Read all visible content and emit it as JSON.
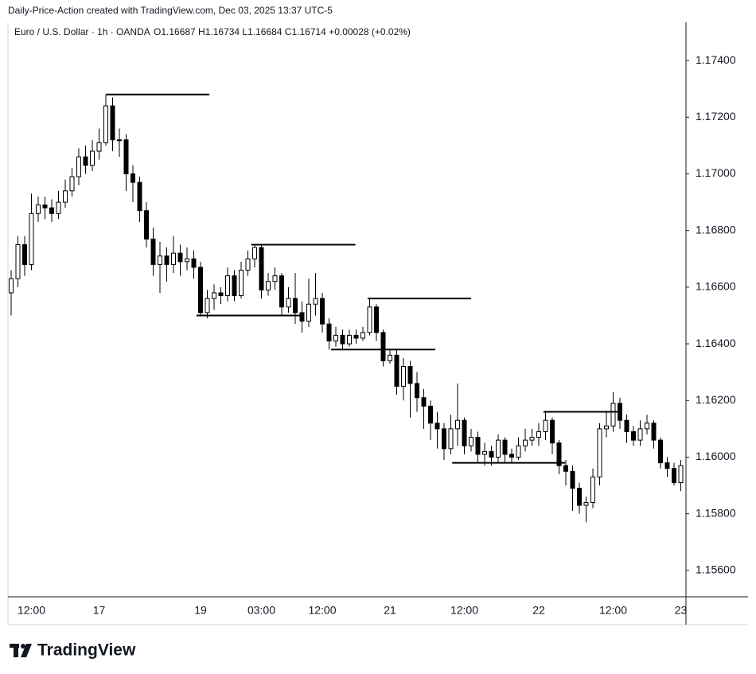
{
  "header": "Daily-Price-Action created with TradingView.com, Dec 03, 2025 13:37 UTC-5",
  "brand": "TradingView",
  "chart_data": {
    "type": "candlestick",
    "symbol": "Euro / U.S. Dollar · 1h · OANDA",
    "ohlc_legend": "O1.16687 H1.16734 L1.16684 C1.16714 +0.00028 (+0.02%)",
    "up_color": "#ffffff",
    "down_color": "#000000",
    "wick_color": "#000000",
    "categories": [
      null,
      null,
      null,
      "12:00",
      null,
      null,
      null,
      null,
      null,
      null,
      null,
      null,
      null,
      "17",
      null,
      null,
      null,
      null,
      null,
      null,
      null,
      null,
      null,
      null,
      null,
      null,
      null,
      null,
      "19",
      null,
      null,
      null,
      null,
      null,
      null,
      null,
      null,
      "03:00",
      null,
      null,
      null,
      null,
      null,
      null,
      null,
      null,
      "12:00",
      null,
      null,
      null,
      null,
      null,
      null,
      null,
      null,
      null,
      "21",
      null,
      null,
      null,
      null,
      null,
      null,
      null,
      null,
      null,
      null,
      "12:00",
      null,
      null,
      null,
      null,
      null,
      null,
      null,
      null,
      null,
      null,
      "22",
      null,
      null,
      null,
      null,
      null,
      null,
      null,
      null,
      null,
      null,
      "12:00",
      null,
      null,
      null,
      null,
      null,
      null,
      null,
      null,
      null,
      "23"
    ],
    "candles": [
      [
        1.1658,
        1.1666,
        1.165,
        1.1663
      ],
      [
        1.1663,
        1.1678,
        1.166,
        1.1675
      ],
      [
        1.1675,
        1.1678,
        1.1664,
        1.1668
      ],
      [
        1.1668,
        1.1693,
        1.1666,
        1.1686
      ],
      [
        1.1686,
        1.1692,
        1.1683,
        1.1689
      ],
      [
        1.1689,
        1.1692,
        1.1684,
        1.1688
      ],
      [
        1.1688,
        1.1691,
        1.1683,
        1.1686
      ],
      [
        1.1686,
        1.1694,
        1.1684,
        1.169
      ],
      [
        1.169,
        1.1698,
        1.1688,
        1.1694
      ],
      [
        1.1694,
        1.1702,
        1.1692,
        1.1699
      ],
      [
        1.1699,
        1.1709,
        1.1696,
        1.1706
      ],
      [
        1.1706,
        1.171,
        1.17,
        1.1703
      ],
      [
        1.1703,
        1.1712,
        1.1701,
        1.1708
      ],
      [
        1.1708,
        1.1716,
        1.1705,
        1.1711
      ],
      [
        1.1711,
        1.1728,
        1.171,
        1.1724
      ],
      [
        1.1724,
        1.1727,
        1.1708,
        1.1712
      ],
      [
        1.1712,
        1.1716,
        1.1706,
        1.1712
      ],
      [
        1.1712,
        1.1714,
        1.1694,
        1.17
      ],
      [
        1.17,
        1.1703,
        1.169,
        1.1697
      ],
      [
        1.1697,
        1.1699,
        1.1683,
        1.1687
      ],
      [
        1.1687,
        1.169,
        1.1674,
        1.1677
      ],
      [
        1.1677,
        1.1681,
        1.1664,
        1.1668
      ],
      [
        1.1668,
        1.1676,
        1.1658,
        1.1671
      ],
      [
        1.1671,
        1.1674,
        1.1662,
        1.1668
      ],
      [
        1.1668,
        1.1678,
        1.1665,
        1.1672
      ],
      [
        1.1672,
        1.1675,
        1.1664,
        1.1669
      ],
      [
        1.1669,
        1.1674,
        1.1666,
        1.167
      ],
      [
        1.167,
        1.1673,
        1.1663,
        1.1667
      ],
      [
        1.1667,
        1.1669,
        1.165,
        1.1651
      ],
      [
        1.1651,
        1.1659,
        1.1649,
        1.1656
      ],
      [
        1.1656,
        1.1661,
        1.1652,
        1.1658
      ],
      [
        1.1658,
        1.166,
        1.1654,
        1.1657
      ],
      [
        1.1657,
        1.1667,
        1.1655,
        1.1664
      ],
      [
        1.1664,
        1.1666,
        1.1655,
        1.1657
      ],
      [
        1.1657,
        1.1669,
        1.1656,
        1.1666
      ],
      [
        1.1666,
        1.1673,
        1.1664,
        1.167
      ],
      [
        1.167,
        1.1675,
        1.1667,
        1.1674
      ],
      [
        1.1674,
        1.1675,
        1.1656,
        1.1659
      ],
      [
        1.1659,
        1.1665,
        1.1657,
        1.1662
      ],
      [
        1.1662,
        1.1667,
        1.1659,
        1.1664
      ],
      [
        1.1664,
        1.1665,
        1.165,
        1.1653
      ],
      [
        1.1653,
        1.166,
        1.1651,
        1.1656
      ],
      [
        1.1656,
        1.1665,
        1.1647,
        1.1651
      ],
      [
        1.1651,
        1.1655,
        1.1644,
        1.1648
      ],
      [
        1.1648,
        1.1663,
        1.1646,
        1.1654
      ],
      [
        1.1654,
        1.1665,
        1.165,
        1.1656
      ],
      [
        1.1656,
        1.1658,
        1.1644,
        1.1647
      ],
      [
        1.1647,
        1.1649,
        1.1638,
        1.1641
      ],
      [
        1.1641,
        1.1646,
        1.1639,
        1.1643
      ],
      [
        1.1643,
        1.1645,
        1.1638,
        1.164
      ],
      [
        1.164,
        1.1645,
        1.1639,
        1.1643
      ],
      [
        1.1643,
        1.1645,
        1.164,
        1.1642
      ],
      [
        1.1642,
        1.1646,
        1.1641,
        1.1644
      ],
      [
        1.1644,
        1.1656,
        1.1643,
        1.1653
      ],
      [
        1.1653,
        1.1654,
        1.1641,
        1.1644
      ],
      [
        1.1644,
        1.1645,
        1.1632,
        1.1634
      ],
      [
        1.1634,
        1.1638,
        1.1633,
        1.1636
      ],
      [
        1.1636,
        1.1638,
        1.1622,
        1.1625
      ],
      [
        1.1625,
        1.1635,
        1.162,
        1.1632
      ],
      [
        1.1632,
        1.1634,
        1.1614,
        1.1626
      ],
      [
        1.1626,
        1.163,
        1.1616,
        1.1621
      ],
      [
        1.1621,
        1.1624,
        1.161,
        1.1618
      ],
      [
        1.1618,
        1.162,
        1.1606,
        1.1612
      ],
      [
        1.1612,
        1.1616,
        1.1603,
        1.161
      ],
      [
        1.161,
        1.1612,
        1.1599,
        1.1603
      ],
      [
        1.1603,
        1.1615,
        1.1601,
        1.161
      ],
      [
        1.161,
        1.1626,
        1.1604,
        1.1613
      ],
      [
        1.1613,
        1.1614,
        1.1601,
        1.1604
      ],
      [
        1.1604,
        1.161,
        1.1602,
        1.1607
      ],
      [
        1.1607,
        1.1609,
        1.1598,
        1.1601
      ],
      [
        1.1601,
        1.1605,
        1.1597,
        1.1602
      ],
      [
        1.1602,
        1.1604,
        1.1597,
        1.16
      ],
      [
        1.16,
        1.1608,
        1.1598,
        1.1606
      ],
      [
        1.1606,
        1.1607,
        1.1598,
        1.1601
      ],
      [
        1.1601,
        1.1603,
        1.1598,
        1.16
      ],
      [
        1.16,
        1.1607,
        1.1599,
        1.1604
      ],
      [
        1.1604,
        1.161,
        1.1602,
        1.1606
      ],
      [
        1.1606,
        1.161,
        1.1604,
        1.1607
      ],
      [
        1.1607,
        1.1612,
        1.1604,
        1.1609
      ],
      [
        1.1609,
        1.1616,
        1.1606,
        1.1613
      ],
      [
        1.1613,
        1.1614,
        1.1601,
        1.1605
      ],
      [
        1.1605,
        1.1606,
        1.1594,
        1.1597
      ],
      [
        1.1597,
        1.1599,
        1.159,
        1.1595
      ],
      [
        1.1595,
        1.1597,
        1.1581,
        1.1589
      ],
      [
        1.1589,
        1.1591,
        1.158,
        1.1583
      ],
      [
        1.1583,
        1.1586,
        1.1577,
        1.1584
      ],
      [
        1.1584,
        1.1596,
        1.1582,
        1.1593
      ],
      [
        1.1593,
        1.1612,
        1.159,
        1.161
      ],
      [
        1.161,
        1.1616,
        1.1607,
        1.1611
      ],
      [
        1.1611,
        1.1623,
        1.1609,
        1.1619
      ],
      [
        1.1619,
        1.1621,
        1.161,
        1.1613
      ],
      [
        1.1613,
        1.1615,
        1.1605,
        1.1609
      ],
      [
        1.1609,
        1.1611,
        1.1604,
        1.1606
      ],
      [
        1.1606,
        1.1613,
        1.1604,
        1.161
      ],
      [
        1.161,
        1.1615,
        1.1608,
        1.1612
      ],
      [
        1.1612,
        1.1613,
        1.1603,
        1.1606
      ],
      [
        1.1606,
        1.1607,
        1.1596,
        1.1598
      ],
      [
        1.1598,
        1.16,
        1.1593,
        1.1596
      ],
      [
        1.1596,
        1.1598,
        1.159,
        1.1591
      ],
      [
        1.1591,
        1.1599,
        1.1588,
        1.1597
      ]
    ],
    "levels": [
      {
        "value": 1.1728,
        "x": [
          14,
          29.3
        ]
      },
      {
        "value": 1.165,
        "x": [
          27.4,
          43.1
        ]
      },
      {
        "value": 1.1675,
        "x": [
          35.5,
          50.9
        ]
      },
      {
        "value": 1.1656,
        "x": [
          52.7,
          68
        ]
      },
      {
        "value": 1.1638,
        "x": [
          47.3,
          62.7
        ]
      },
      {
        "value": 1.1598,
        "x": [
          65.2,
          81.9
        ]
      },
      {
        "value": 1.1616,
        "x": [
          78.7,
          89.9
        ]
      }
    ],
    "level_color": "#000000",
    "ylim": [
      1.15507,
      1.17535
    ],
    "yticks": [
      {
        "value": 1.156,
        "label": "1.15600"
      },
      {
        "value": 1.158,
        "label": "1.15800"
      },
      {
        "value": 1.16,
        "label": "1.16000"
      },
      {
        "value": 1.162,
        "label": "1.16200"
      },
      {
        "value": 1.164,
        "label": "1.16400"
      },
      {
        "value": 1.166,
        "label": "1.16600"
      },
      {
        "value": 1.168,
        "label": "1.16800"
      },
      {
        "value": 1.17,
        "label": "1.17000"
      },
      {
        "value": 1.172,
        "label": "1.17200"
      },
      {
        "value": 1.174,
        "label": "1.17400"
      }
    ],
    "grid": false
  }
}
